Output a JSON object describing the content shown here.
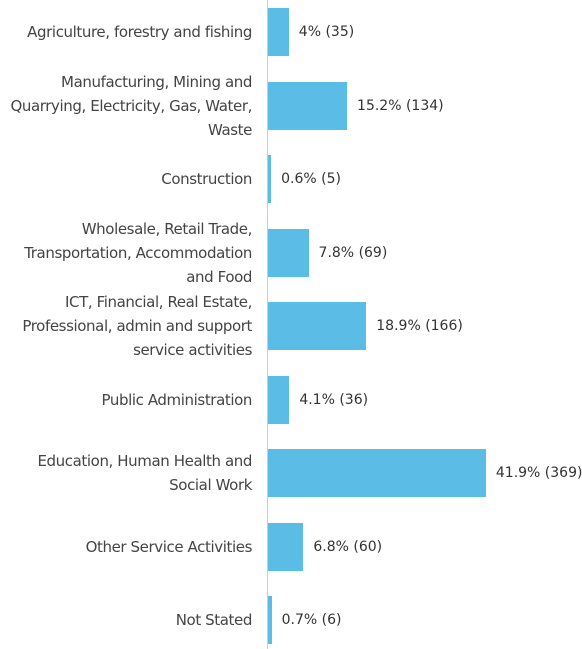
{
  "chart_data": {
    "type": "bar",
    "orientation": "horizontal",
    "categories": [
      "Agriculture, forestry and fishing",
      "Manufacturing, Mining and Quarrying, Electricity, Gas, Water, Waste",
      "Construction",
      "Wholesale, Retail Trade, Transportation, Accommodation and Food",
      "ICT, Financial, Real Estate, Professional, admin and support service activities",
      "Public Administration",
      "Education, Human Health and Social Work",
      "Other Service Activities",
      "Not Stated"
    ],
    "values": [
      4,
      15.2,
      0.6,
      7.8,
      18.9,
      4.1,
      41.9,
      6.8,
      0.7
    ],
    "value_labels": [
      "4% (35)",
      "15.2% (134)",
      "0.6% (5)",
      "7.8% (69)",
      "18.9% (166)",
      "4.1% (36)",
      "41.9% (369)",
      "6.8% (60)",
      "0.7% (6)"
    ],
    "color": "#5bbde6"
  }
}
